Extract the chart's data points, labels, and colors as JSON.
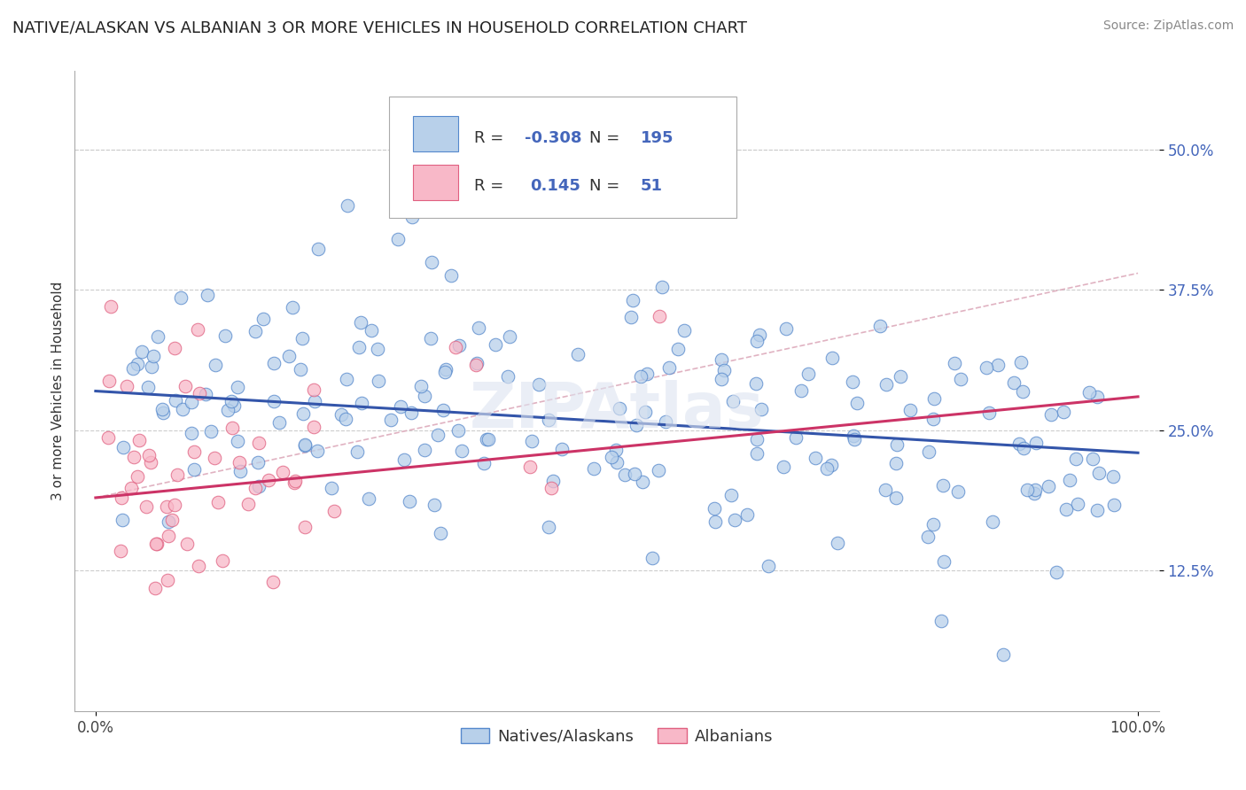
{
  "title": "NATIVE/ALASKAN VS ALBANIAN 3 OR MORE VEHICLES IN HOUSEHOLD CORRELATION CHART",
  "source": "Source: ZipAtlas.com",
  "ylabel": "3 or more Vehicles in Household",
  "xlim": [
    -2,
    102
  ],
  "ylim": [
    0,
    57
  ],
  "xtick_positions": [
    0,
    100
  ],
  "xtick_labels": [
    "0.0%",
    "100.0%"
  ],
  "ytick_values": [
    12.5,
    25.0,
    37.5,
    50.0
  ],
  "ytick_labels": [
    "12.5%",
    "25.0%",
    "37.5%",
    "50.0%"
  ],
  "blue_fill": "#b8d0ea",
  "blue_edge": "#5588cc",
  "pink_fill": "#f8b8c8",
  "pink_edge": "#e06080",
  "blue_line_color": "#3355aa",
  "pink_line_color": "#cc3366",
  "dashed_line_color": "#ddaabb",
  "grid_color": "#cccccc",
  "legend_R1": "-0.308",
  "legend_N1": "195",
  "legend_R2": "0.145",
  "legend_N2": "51",
  "legend_label1": "Natives/Alaskans",
  "legend_label2": "Albanians",
  "watermark": "ZIPAtlas",
  "title_fontsize": 13,
  "source_fontsize": 10,
  "ylabel_fontsize": 11,
  "tick_fontsize": 12,
  "legend_fontsize": 13,
  "blue_trend_start": 28.5,
  "blue_trend_end": 23.0,
  "pink_trend_start": 19.0,
  "pink_trend_end": 28.0,
  "dashed_trend_start": 19.0,
  "dashed_trend_end": 39.0
}
